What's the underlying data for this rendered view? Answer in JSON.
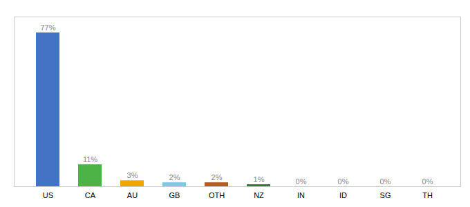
{
  "chart_data": {
    "type": "bar",
    "categories": [
      "US",
      "CA",
      "AU",
      "GB",
      "OTH",
      "NZ",
      "IN",
      "ID",
      "SG",
      "TH"
    ],
    "values": [
      77,
      11,
      3,
      2,
      2,
      1,
      0,
      0,
      0,
      0
    ],
    "value_labels": [
      "77%",
      "11%",
      "3%",
      "2%",
      "2%",
      "1%",
      "0%",
      "0%",
      "0%",
      "0%"
    ],
    "colors": [
      "#4472c4",
      "#4db346",
      "#f0a500",
      "#7ec8e3",
      "#b85c1e",
      "#2d7a2d",
      "#4472c4",
      "#4472c4",
      "#4472c4",
      "#4472c4"
    ],
    "ylim": [
      0,
      85
    ],
    "data_labels": true,
    "tick_labels": "x",
    "grid": false
  }
}
